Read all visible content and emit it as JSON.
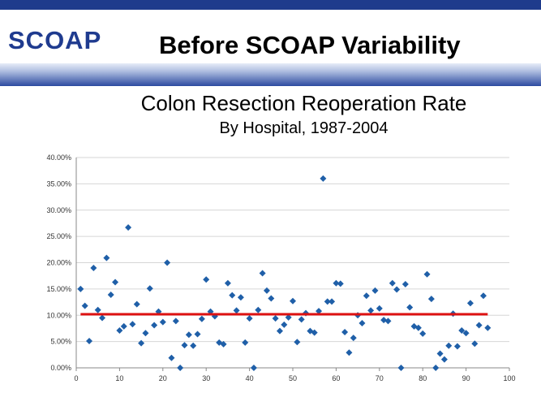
{
  "header": {
    "logo_text": "SCOAP",
    "title": "Before SCOAP Variability"
  },
  "chart_data": {
    "type": "scatter",
    "title": "Colon Resection Reoperation Rate",
    "subtitle": "By Hospital, 1987-2004",
    "xlabel": "",
    "ylabel": "",
    "xlim": [
      0,
      100
    ],
    "ylim": [
      0,
      0.4
    ],
    "x_ticks": [
      0,
      10,
      20,
      30,
      40,
      50,
      60,
      70,
      80,
      90,
      100
    ],
    "y_ticks": [
      {
        "value": 0.0,
        "label": "0.00%"
      },
      {
        "value": 0.05,
        "label": "5.00%"
      },
      {
        "value": 0.1,
        "label": "10.00%"
      },
      {
        "value": 0.15,
        "label": "15.00%"
      },
      {
        "value": 0.2,
        "label": "20.00%"
      },
      {
        "value": 0.25,
        "label": "25.00%"
      },
      {
        "value": 0.3,
        "label": "30.00%"
      },
      {
        "value": 0.35,
        "label": "35.00%"
      },
      {
        "value": 0.4,
        "label": "40.00%"
      }
    ],
    "grid": "horizontal",
    "marker_color": "#1f5fa8",
    "reference_line": {
      "value": 0.102,
      "x_start": 1,
      "x_end": 95,
      "color": "#dd1111"
    },
    "points": [
      [
        1,
        0.15
      ],
      [
        2,
        0.118
      ],
      [
        3,
        0.051
      ],
      [
        4,
        0.19
      ],
      [
        5,
        0.11
      ],
      [
        6,
        0.095
      ],
      [
        7,
        0.209
      ],
      [
        8,
        0.139
      ],
      [
        9,
        0.163
      ],
      [
        10,
        0.071
      ],
      [
        11,
        0.079
      ],
      [
        12,
        0.267
      ],
      [
        13,
        0.083
      ],
      [
        14,
        0.121
      ],
      [
        15,
        0.047
      ],
      [
        16,
        0.066
      ],
      [
        17,
        0.151
      ],
      [
        18,
        0.081
      ],
      [
        19,
        0.107
      ],
      [
        20,
        0.087
      ],
      [
        21,
        0.2
      ],
      [
        22,
        0.019
      ],
      [
        23,
        0.089
      ],
      [
        24,
        0.0
      ],
      [
        25,
        0.043
      ],
      [
        26,
        0.063
      ],
      [
        27,
        0.042
      ],
      [
        28,
        0.064
      ],
      [
        29,
        0.093
      ],
      [
        30,
        0.168
      ],
      [
        31,
        0.107
      ],
      [
        32,
        0.098
      ],
      [
        33,
        0.048
      ],
      [
        34,
        0.045
      ],
      [
        35,
        0.161
      ],
      [
        36,
        0.138
      ],
      [
        37,
        0.109
      ],
      [
        38,
        0.134
      ],
      [
        39,
        0.048
      ],
      [
        40,
        0.094
      ],
      [
        41,
        0.0
      ],
      [
        42,
        0.11
      ],
      [
        43,
        0.18
      ],
      [
        44,
        0.147
      ],
      [
        45,
        0.132
      ],
      [
        46,
        0.094
      ],
      [
        47,
        0.07
      ],
      [
        48,
        0.082
      ],
      [
        49,
        0.096
      ],
      [
        50,
        0.127
      ],
      [
        51,
        0.049
      ],
      [
        52,
        0.092
      ],
      [
        53,
        0.104
      ],
      [
        54,
        0.07
      ],
      [
        55,
        0.067
      ],
      [
        56,
        0.108
      ],
      [
        57,
        0.36
      ],
      [
        58,
        0.126
      ],
      [
        59,
        0.126
      ],
      [
        60,
        0.161
      ],
      [
        61,
        0.16
      ],
      [
        62,
        0.068
      ],
      [
        63,
        0.029
      ],
      [
        64,
        0.057
      ],
      [
        65,
        0.1
      ],
      [
        66,
        0.085
      ],
      [
        67,
        0.137
      ],
      [
        68,
        0.109
      ],
      [
        69,
        0.147
      ],
      [
        70,
        0.113
      ],
      [
        71,
        0.091
      ],
      [
        72,
        0.089
      ],
      [
        73,
        0.161
      ],
      [
        74,
        0.149
      ],
      [
        75,
        0.0
      ],
      [
        76,
        0.159
      ],
      [
        77,
        0.115
      ],
      [
        78,
        0.079
      ],
      [
        79,
        0.076
      ],
      [
        80,
        0.065
      ],
      [
        81,
        0.178
      ],
      [
        82,
        0.131
      ],
      [
        83,
        0.0
      ],
      [
        84,
        0.027
      ],
      [
        85,
        0.016
      ],
      [
        86,
        0.042
      ],
      [
        87,
        0.103
      ],
      [
        88,
        0.041
      ],
      [
        89,
        0.071
      ],
      [
        90,
        0.066
      ],
      [
        91,
        0.123
      ],
      [
        92,
        0.046
      ],
      [
        93,
        0.081
      ],
      [
        94,
        0.137
      ],
      [
        95,
        0.076
      ]
    ]
  }
}
